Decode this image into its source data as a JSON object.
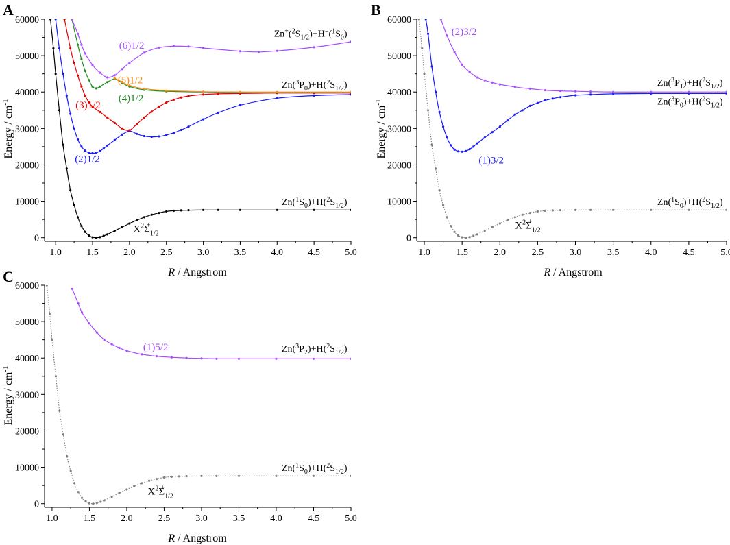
{
  "figure": {
    "panel_letters": [
      "A",
      "B",
      "C"
    ]
  },
  "chart_data": [
    {
      "panel": "A",
      "type": "line",
      "title": "",
      "xlabel_italic": "R",
      "xlabel_rest": " / Angstrom",
      "ylabel": "Energy / cm",
      "ylabel_sup": "-1",
      "xlim": [
        0.85,
        5.0
      ],
      "ylim": [
        -1000,
        60000
      ],
      "xticks": [
        1.0,
        1.5,
        2.0,
        2.5,
        3.0,
        3.5,
        4.0,
        4.5,
        5.0
      ],
      "xtick_labels": [
        "1.0",
        "1.5",
        "2.0",
        "2.5",
        "3.0",
        "3.5",
        "4.0",
        "4.5",
        "5.0"
      ],
      "yticks": [
        0,
        10000,
        20000,
        30000,
        40000,
        50000,
        60000
      ],
      "ytick_labels": [
        "0",
        "10000",
        "20000",
        "30000",
        "40000",
        "50000",
        "60000"
      ],
      "series": [
        {
          "name": "X2Σ+1/2",
          "color": "#000000",
          "dotted": false,
          "x": [
            0.93,
            0.97,
            1.0,
            1.05,
            1.1,
            1.15,
            1.2,
            1.25,
            1.3,
            1.35,
            1.4,
            1.45,
            1.5,
            1.55,
            1.6,
            1.65,
            1.7,
            1.8,
            1.9,
            2.0,
            2.1,
            2.2,
            2.3,
            2.4,
            2.5,
            2.6,
            2.7,
            2.8,
            3.0,
            3.2,
            3.5,
            4.0,
            4.5,
            5.0
          ],
          "y": [
            60000,
            52000,
            45000,
            35000,
            25500,
            19000,
            13000,
            9000,
            5600,
            3200,
            1600,
            600,
            120,
            0,
            150,
            500,
            900,
            1900,
            2900,
            3900,
            4800,
            5600,
            6300,
            6800,
            7200,
            7400,
            7500,
            7550,
            7600,
            7600,
            7600,
            7600,
            7600,
            7600
          ]
        },
        {
          "name": "(2)1/2",
          "color": "#1a1aff",
          "dotted": false,
          "x": [
            1.0,
            1.05,
            1.1,
            1.15,
            1.2,
            1.25,
            1.3,
            1.35,
            1.4,
            1.45,
            1.5,
            1.55,
            1.6,
            1.65,
            1.7,
            1.8,
            1.9,
            2.0,
            2.1,
            2.2,
            2.3,
            2.4,
            2.5,
            2.6,
            2.7,
            2.8,
            3.0,
            3.2,
            3.5,
            4.0,
            4.5,
            5.0
          ],
          "y": [
            60000,
            52000,
            45000,
            39000,
            34000,
            30000,
            27000,
            25000,
            23900,
            23300,
            23200,
            23300,
            23800,
            24500,
            25300,
            26800,
            28300,
            29300,
            28500,
            27900,
            27700,
            27800,
            28200,
            28800,
            29600,
            30500,
            32500,
            34300,
            36400,
            38300,
            39000,
            39300
          ]
        },
        {
          "name": "(3)1/2",
          "color": "#e60000",
          "dotted": false,
          "x": [
            1.12,
            1.2,
            1.25,
            1.3,
            1.35,
            1.4,
            1.45,
            1.5,
            1.6,
            1.7,
            1.8,
            1.9,
            2.0,
            2.1,
            2.2,
            2.3,
            2.4,
            2.5,
            2.6,
            2.7,
            2.8,
            3.0,
            3.2,
            3.5,
            4.0,
            4.5,
            5.0
          ],
          "y": [
            60000,
            52000,
            48000,
            44500,
            41500,
            39000,
            37200,
            36000,
            34500,
            33000,
            31500,
            30000,
            29500,
            31200,
            33000,
            34600,
            36000,
            37100,
            37900,
            38500,
            38900,
            39300,
            39500,
            39600,
            39700,
            39700,
            39700
          ]
        },
        {
          "name": "(4)1/2",
          "color": "#228b22",
          "dotted": false,
          "x": [
            1.22,
            1.3,
            1.35,
            1.4,
            1.45,
            1.5,
            1.55,
            1.6,
            1.7,
            1.8,
            1.9,
            2.0,
            2.2,
            2.5,
            3.0,
            3.5,
            4.0,
            5.0
          ],
          "y": [
            60000,
            53000,
            49000,
            45800,
            43300,
            41500,
            41000,
            41500,
            42700,
            43600,
            42500,
            41500,
            40600,
            40200,
            40000,
            39900,
            39900,
            39900
          ]
        },
        {
          "name": "(5)1/2",
          "color": "#ff8c1a",
          "dotted": false,
          "x": [
            1.8,
            1.9,
            2.0,
            2.2,
            2.5,
            3.0,
            3.5,
            4.0,
            5.0
          ],
          "y": [
            43800,
            42800,
            41800,
            40900,
            40400,
            40100,
            40000,
            40000,
            40000
          ]
        },
        {
          "name": "(6)1/2",
          "color": "#a64dff",
          "dotted": false,
          "x": [
            1.22,
            1.3,
            1.35,
            1.4,
            1.5,
            1.6,
            1.7,
            1.8,
            1.9,
            2.0,
            2.2,
            2.4,
            2.6,
            2.8,
            3.0,
            3.5,
            3.75,
            4.0,
            4.5,
            5.0
          ],
          "y": [
            60000,
            56000,
            53000,
            50600,
            47400,
            45300,
            44000,
            44600,
            46300,
            48000,
            50800,
            52200,
            52600,
            52500,
            52100,
            51200,
            51000,
            51300,
            52300,
            53800
          ]
        }
      ],
      "series_labels": [
        {
          "key": "x",
          "text": "X",
          "sup": "2",
          "main": "Σ",
          "sub": "1/2",
          "sup2": "+",
          "color": "#000000",
          "at": [
            2.05,
            1500
          ]
        },
        {
          "key": "s2",
          "text": "(2)1/2",
          "color": "#1a1aff",
          "at": [
            1.26,
            20700
          ]
        },
        {
          "key": "s3",
          "text": "(3)1/2",
          "color": "#e60000",
          "at": [
            1.27,
            35500
          ]
        },
        {
          "key": "s4",
          "text": "(4)1/2",
          "color": "#228b22",
          "at": [
            1.85,
            37400
          ]
        },
        {
          "key": "s5",
          "text": "(5)1/2",
          "color": "#ff8c1a",
          "at": [
            1.84,
            42400
          ]
        },
        {
          "key": "s6",
          "text": "(6)1/2",
          "color": "#a64dff",
          "at": [
            1.86,
            51900
          ]
        }
      ],
      "asymptote_labels": [
        {
          "key": "a1",
          "text": "Zn+(2S1/2)+H−(1S0)",
          "at": [
            4.95,
            55200
          ]
        },
        {
          "key": "a2",
          "text": "Zn(3P0)+H(2S1/2)",
          "at": [
            4.95,
            41200
          ]
        },
        {
          "key": "a3",
          "text": "Zn(1S0)+H(2S1/2)",
          "at": [
            4.95,
            9000
          ]
        }
      ]
    },
    {
      "panel": "B",
      "type": "line",
      "title": "",
      "xlabel_italic": "R",
      "xlabel_rest": " / Angstrom",
      "ylabel": "Energy / cm",
      "ylabel_sup": "-1",
      "xlim": [
        0.9,
        5.0
      ],
      "ylim": [
        -1000,
        60000
      ],
      "xticks": [
        1.0,
        1.5,
        2.0,
        2.5,
        3.0,
        3.5,
        4.0,
        4.5,
        5.0
      ],
      "xtick_labels": [
        "1.0",
        "1.5",
        "2.0",
        "2.5",
        "3.0",
        "3.5",
        "4.0",
        "4.5",
        "5.0"
      ],
      "yticks": [
        0,
        10000,
        20000,
        30000,
        40000,
        50000,
        60000
      ],
      "ytick_labels": [
        "0",
        "10000",
        "20000",
        "30000",
        "40000",
        "50000",
        "60000"
      ],
      "series": [
        {
          "name": "X2Σ+1/2",
          "color": "#808080",
          "dotted": true,
          "x": [
            0.93,
            0.97,
            1.0,
            1.05,
            1.1,
            1.15,
            1.2,
            1.25,
            1.3,
            1.35,
            1.4,
            1.45,
            1.5,
            1.55,
            1.6,
            1.65,
            1.7,
            1.8,
            1.9,
            2.0,
            2.1,
            2.2,
            2.3,
            2.4,
            2.5,
            2.6,
            2.7,
            2.8,
            3.0,
            3.2,
            3.5,
            4.0,
            4.5,
            5.0
          ],
          "y": [
            60000,
            52000,
            45000,
            35000,
            25500,
            19000,
            13000,
            9000,
            5600,
            3200,
            1600,
            600,
            120,
            0,
            150,
            500,
            900,
            1900,
            2900,
            3900,
            4800,
            5600,
            6300,
            6800,
            7200,
            7400,
            7500,
            7550,
            7600,
            7600,
            7600,
            7600,
            7600,
            7600
          ]
        },
        {
          "name": "(1)3/2",
          "color": "#1a1aff",
          "dotted": false,
          "x": [
            1.02,
            1.05,
            1.1,
            1.15,
            1.2,
            1.25,
            1.3,
            1.35,
            1.4,
            1.45,
            1.5,
            1.55,
            1.6,
            1.65,
            1.7,
            1.8,
            1.9,
            2.0,
            2.1,
            2.2,
            2.3,
            2.4,
            2.5,
            2.6,
            2.7,
            2.8,
            3.0,
            3.2,
            3.5,
            4.0,
            4.5,
            5.0
          ],
          "y": [
            60000,
            56000,
            47000,
            40000,
            34500,
            30500,
            27500,
            25400,
            24200,
            23700,
            23600,
            23800,
            24300,
            25000,
            25900,
            27500,
            29000,
            30500,
            32200,
            33800,
            35000,
            36200,
            37000,
            37700,
            38200,
            38600,
            39100,
            39300,
            39500,
            39600,
            39600,
            39600
          ]
        },
        {
          "name": "(2)3/2",
          "color": "#a64dff",
          "dotted": false,
          "x": [
            1.22,
            1.3,
            1.4,
            1.5,
            1.6,
            1.7,
            1.8,
            1.9,
            2.0,
            2.2,
            2.4,
            2.6,
            2.8,
            3.0,
            3.2,
            3.5,
            4.0,
            4.5,
            5.0
          ],
          "y": [
            60000,
            55500,
            51000,
            47500,
            45500,
            44000,
            43200,
            42600,
            42100,
            41400,
            40900,
            40500,
            40300,
            40200,
            40100,
            40000,
            40000,
            40000,
            40000
          ]
        }
      ],
      "series_labels": [
        {
          "key": "x",
          "text": "X",
          "sup": "2",
          "main": "Σ",
          "sub": "1/2",
          "sup2": "+",
          "color": "#000000",
          "at": [
            2.2,
            2500
          ]
        },
        {
          "key": "s1",
          "text": "(1)3/2",
          "color": "#1a1aff",
          "at": [
            1.72,
            20400
          ]
        },
        {
          "key": "s2",
          "text": "(2)3/2",
          "color": "#a64dff",
          "at": [
            1.36,
            55700
          ]
        }
      ],
      "asymptote_labels": [
        {
          "key": "a1",
          "text": "Zn(3P1)+H(2S1/2)",
          "at": [
            4.95,
            41700
          ]
        },
        {
          "key": "a2",
          "text": "Zn(3P0)+H(2S1/2)",
          "at": [
            4.95,
            36600
          ]
        },
        {
          "key": "a3",
          "text": "Zn(1S0)+H(2S1/2)",
          "at": [
            4.95,
            9000
          ]
        }
      ]
    },
    {
      "panel": "C",
      "type": "line",
      "title": "",
      "xlabel_italic": "R",
      "xlabel_rest": " / Angstrom",
      "ylabel": "Energy / cm",
      "ylabel_sup": "-1",
      "xlim": [
        0.9,
        5.0
      ],
      "ylim": [
        -1000,
        60000
      ],
      "xticks": [
        1.0,
        1.5,
        2.0,
        2.5,
        3.0,
        3.5,
        4.0,
        4.5,
        5.0
      ],
      "xtick_labels": [
        "1.0",
        "1.5",
        "2.0",
        "2.5",
        "3.0",
        "3.5",
        "4.0",
        "4.5",
        "5.0"
      ],
      "yticks": [
        0,
        10000,
        20000,
        30000,
        40000,
        50000,
        60000
      ],
      "ytick_labels": [
        "0",
        "10000",
        "20000",
        "30000",
        "40000",
        "50000",
        "60000"
      ],
      "series": [
        {
          "name": "X2Σ+1/2",
          "color": "#808080",
          "dotted": true,
          "x": [
            0.93,
            0.97,
            1.0,
            1.05,
            1.1,
            1.15,
            1.2,
            1.25,
            1.3,
            1.35,
            1.4,
            1.45,
            1.5,
            1.55,
            1.6,
            1.65,
            1.7,
            1.8,
            1.9,
            2.0,
            2.1,
            2.2,
            2.3,
            2.4,
            2.5,
            2.6,
            2.7,
            2.8,
            3.0,
            3.2,
            3.5,
            4.0,
            4.5,
            5.0
          ],
          "y": [
            60000,
            52000,
            45000,
            35000,
            25500,
            19000,
            13000,
            9000,
            5600,
            3200,
            1600,
            600,
            120,
            0,
            150,
            500,
            900,
            1900,
            2900,
            3900,
            4800,
            5600,
            6300,
            6800,
            7200,
            7400,
            7500,
            7550,
            7600,
            7600,
            7600,
            7600,
            7600,
            7600
          ]
        },
        {
          "name": "(1)5/2",
          "color": "#a64dff",
          "dotted": false,
          "x": [
            1.27,
            1.35,
            1.4,
            1.5,
            1.6,
            1.7,
            1.8,
            1.9,
            2.0,
            2.2,
            2.4,
            2.6,
            2.8,
            3.0,
            3.2,
            3.5,
            4.0,
            4.5,
            5.0
          ],
          "y": [
            59000,
            55000,
            52500,
            49500,
            47000,
            45000,
            43800,
            42800,
            42000,
            41000,
            40500,
            40200,
            40000,
            39900,
            39800,
            39800,
            39800,
            39800,
            39800
          ]
        }
      ],
      "series_labels": [
        {
          "key": "x",
          "text": "X",
          "sup": "2",
          "main": "Σ",
          "sub": "1/2",
          "sup2": "+",
          "color": "#000000",
          "at": [
            2.28,
            2500
          ]
        },
        {
          "key": "s1",
          "text": "(1)5/2",
          "color": "#a64dff",
          "at": [
            2.22,
            42100
          ]
        }
      ],
      "asymptote_labels": [
        {
          "key": "a1",
          "text": "Zn(3P2)+H(2S1/2)",
          "at": [
            4.95,
            41700
          ]
        },
        {
          "key": "a2",
          "text": "Zn(1S0)+H(2S1/2)",
          "at": [
            4.95,
            9000
          ]
        }
      ]
    }
  ]
}
